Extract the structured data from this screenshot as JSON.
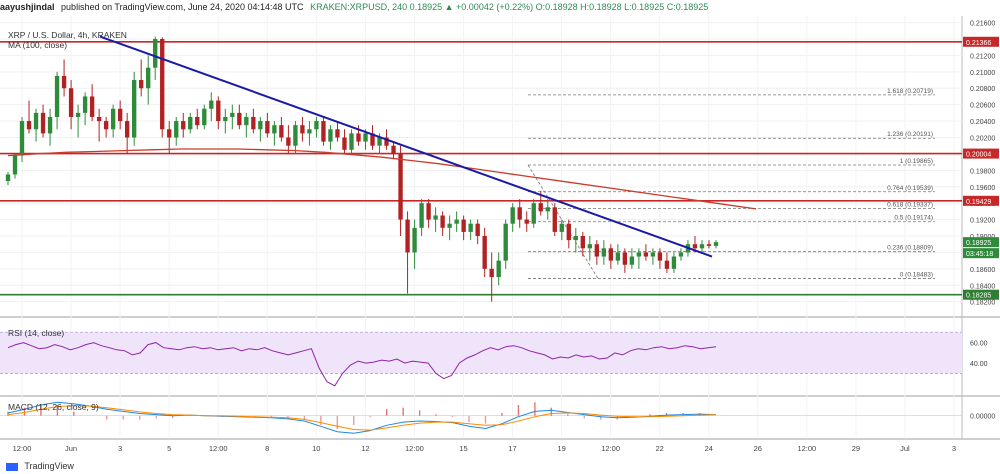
{
  "header": {
    "author": "aayushjindal",
    "published": "published on TradingView.com, June 24, 2020 04:14:48 UTC",
    "ohlc": "KRAKEN:XRPUSD, 240  0.18925 ▲ +0.00042 (+0.22%)  O:0.18928  H:0.18928  L:0.18925  C:0.18925"
  },
  "chart_title": "XRP / U.S. Dollar, 4h, KRAKEN",
  "ma_label": "MA (100, close)",
  "rsi_label": "RSI (14, close)",
  "macd_label": "MACD (12, 26, close, 9)",
  "footer_brand": "TradingView",
  "colors": {
    "up": "#2e8b3a",
    "down": "#b22222",
    "trendline": "#1a1aa6",
    "ma": "#cc3b2b",
    "rsi": "#8e24aa",
    "hline": "#c62828",
    "support": "#2e7d32",
    "fib": "#777777"
  },
  "chart_data": [
    {
      "type": "candlestick",
      "title": "XRP / U.S. Dollar, 4h, KRAKEN",
      "ylim": [
        0.1805,
        0.2168
      ],
      "y_ticks": [
        "0.21600",
        "0.21400",
        "0.21200",
        "0.21000",
        "0.20800",
        "0.20600",
        "0.20400",
        "0.20200",
        "0.20000",
        "0.19800",
        "0.19600",
        "0.19400",
        "0.19200",
        "0.19000",
        "0.18800",
        "0.18600",
        "0.18400",
        "0.18200"
      ],
      "x_ticks": [
        "12:00",
        "Jun",
        "3",
        "5",
        "12:00",
        "8",
        "10",
        "12",
        "12:00",
        "15",
        "17",
        "19",
        "12:00",
        "22",
        "24",
        "26",
        "12:00",
        "29",
        "Jul",
        "3"
      ],
      "last_price": "0.18925",
      "countdown": "03:45:18",
      "horizontal_levels": [
        {
          "label": "0.21366",
          "value": 0.21366
        },
        {
          "label": "0.20004",
          "value": 0.20004
        },
        {
          "label": "0.19429",
          "value": 0.19429
        },
        {
          "label": "0.18285",
          "value": 0.18285
        }
      ],
      "fibonacci": [
        {
          "label": "1.618 (0.20719)",
          "value": 0.20719
        },
        {
          "label": "1.236 (0.20191)",
          "value": 0.20191
        },
        {
          "label": "1 (0.19865)",
          "value": 0.19865
        },
        {
          "label": "0.764 (0.19539)",
          "value": 0.19539
        },
        {
          "label": "0.618 (0.19337)",
          "value": 0.19337
        },
        {
          "label": "0.5 (0.19174)",
          "value": 0.19174
        },
        {
          "label": "0.236 (0.18809)",
          "value": 0.18809
        },
        {
          "label": "0 (0.18483)",
          "value": 0.18483
        }
      ],
      "trendline": [
        [
          0.2143,
          0.0
        ],
        [
          0.1875,
          1.0
        ]
      ],
      "candles": [
        [
          0.1967,
          0.1978,
          0.1962,
          0.1975
        ],
        [
          0.1975,
          0.2,
          0.197,
          0.1998
        ],
        [
          0.1998,
          0.2045,
          0.199,
          0.204
        ],
        [
          0.204,
          0.2065,
          0.2025,
          0.203
        ],
        [
          0.203,
          0.2055,
          0.2015,
          0.205
        ],
        [
          0.205,
          0.206,
          0.202,
          0.2025
        ],
        [
          0.2025,
          0.2055,
          0.201,
          0.2045
        ],
        [
          0.2045,
          0.21,
          0.203,
          0.2095
        ],
        [
          0.2095,
          0.2115,
          0.207,
          0.208
        ],
        [
          0.208,
          0.209,
          0.203,
          0.2045
        ],
        [
          0.2045,
          0.206,
          0.202,
          0.205
        ],
        [
          0.205,
          0.2075,
          0.2035,
          0.207
        ],
        [
          0.207,
          0.2085,
          0.204,
          0.2045
        ],
        [
          0.2045,
          0.2055,
          0.2015,
          0.204
        ],
        [
          0.204,
          0.2045,
          0.202,
          0.203
        ],
        [
          0.203,
          0.206,
          0.202,
          0.2055
        ],
        [
          0.2055,
          0.2065,
          0.203,
          0.204
        ],
        [
          0.204,
          0.205,
          0.2,
          0.202
        ],
        [
          0.202,
          0.21,
          0.201,
          0.209
        ],
        [
          0.209,
          0.2115,
          0.207,
          0.208
        ],
        [
          0.208,
          0.212,
          0.206,
          0.2105
        ],
        [
          0.2105,
          0.2143,
          0.209,
          0.214
        ],
        [
          0.214,
          0.2142,
          0.202,
          0.203
        ],
        [
          0.203,
          0.204,
          0.2,
          0.202
        ],
        [
          0.202,
          0.2045,
          0.201,
          0.204
        ],
        [
          0.204,
          0.205,
          0.202,
          0.203
        ],
        [
          0.203,
          0.205,
          0.2025,
          0.2045
        ],
        [
          0.2045,
          0.2055,
          0.203,
          0.2035
        ],
        [
          0.2035,
          0.206,
          0.203,
          0.2055
        ],
        [
          0.2055,
          0.2075,
          0.204,
          0.2065
        ],
        [
          0.2065,
          0.207,
          0.203,
          0.204
        ],
        [
          0.204,
          0.2055,
          0.2025,
          0.2045
        ],
        [
          0.2045,
          0.206,
          0.203,
          0.205
        ],
        [
          0.205,
          0.206,
          0.203,
          0.2035
        ],
        [
          0.2035,
          0.205,
          0.202,
          0.2045
        ],
        [
          0.2045,
          0.2055,
          0.2025,
          0.203
        ],
        [
          0.203,
          0.2045,
          0.2015,
          0.204
        ],
        [
          0.204,
          0.205,
          0.202,
          0.2025
        ],
        [
          0.2025,
          0.204,
          0.201,
          0.2035
        ],
        [
          0.2035,
          0.2045,
          0.2015,
          0.202
        ],
        [
          0.202,
          0.2035,
          0.2,
          0.201
        ],
        [
          0.201,
          0.204,
          0.2,
          0.2035
        ],
        [
          0.2035,
          0.2045,
          0.2015,
          0.2025
        ],
        [
          0.2025,
          0.204,
          0.201,
          0.203
        ],
        [
          0.203,
          0.2045,
          0.202,
          0.204
        ],
        [
          0.204,
          0.2045,
          0.201,
          0.2015
        ],
        [
          0.2015,
          0.2035,
          0.2005,
          0.203
        ],
        [
          0.203,
          0.204,
          0.2015,
          0.202
        ],
        [
          0.202,
          0.203,
          0.2,
          0.2005
        ],
        [
          0.2005,
          0.203,
          0.2,
          0.2025
        ],
        [
          0.2025,
          0.2035,
          0.201,
          0.2015
        ],
        [
          0.2015,
          0.203,
          0.2005,
          0.2025
        ],
        [
          0.2025,
          0.2035,
          0.2005,
          0.201
        ],
        [
          0.201,
          0.2025,
          0.2,
          0.202
        ],
        [
          0.202,
          0.203,
          0.2005,
          0.201
        ],
        [
          0.201,
          0.2015,
          0.1995,
          0.2
        ],
        [
          0.2,
          0.201,
          0.19,
          0.192
        ],
        [
          0.192,
          0.193,
          0.183,
          0.188
        ],
        [
          0.188,
          0.192,
          0.186,
          0.191
        ],
        [
          0.191,
          0.1945,
          0.19,
          0.194
        ],
        [
          0.194,
          0.1945,
          0.191,
          0.192
        ],
        [
          0.192,
          0.1935,
          0.1905,
          0.1925
        ],
        [
          0.1925,
          0.193,
          0.19,
          0.191
        ],
        [
          0.191,
          0.1925,
          0.1895,
          0.1915
        ],
        [
          0.1915,
          0.193,
          0.1905,
          0.192
        ],
        [
          0.192,
          0.1925,
          0.1895,
          0.1905
        ],
        [
          0.1905,
          0.192,
          0.1895,
          0.1915
        ],
        [
          0.1915,
          0.192,
          0.189,
          0.19
        ],
        [
          0.19,
          0.191,
          0.185,
          0.186
        ],
        [
          0.186,
          0.188,
          0.182,
          0.185
        ],
        [
          0.185,
          0.188,
          0.184,
          0.187
        ],
        [
          0.187,
          0.192,
          0.186,
          0.1915
        ],
        [
          0.1915,
          0.194,
          0.1905,
          0.1935
        ],
        [
          0.1935,
          0.1945,
          0.191,
          0.192
        ],
        [
          0.192,
          0.193,
          0.1905,
          0.1915
        ],
        [
          0.1915,
          0.1945,
          0.191,
          0.194
        ],
        [
          0.194,
          0.1955,
          0.1925,
          0.193
        ],
        [
          0.193,
          0.1945,
          0.192,
          0.1935
        ],
        [
          0.1935,
          0.194,
          0.19,
          0.1905
        ],
        [
          0.1905,
          0.192,
          0.1895,
          0.1915
        ],
        [
          0.1915,
          0.192,
          0.1885,
          0.1895
        ],
        [
          0.1895,
          0.191,
          0.188,
          0.19
        ],
        [
          0.19,
          0.1905,
          0.1875,
          0.1885
        ],
        [
          0.1885,
          0.19,
          0.187,
          0.189
        ],
        [
          0.189,
          0.1895,
          0.1865,
          0.1875
        ],
        [
          0.1875,
          0.1895,
          0.1865,
          0.1885
        ],
        [
          0.1885,
          0.189,
          0.186,
          0.187
        ],
        [
          0.187,
          0.189,
          0.1865,
          0.188
        ],
        [
          0.188,
          0.1885,
          0.1855,
          0.1865
        ],
        [
          0.1865,
          0.1885,
          0.186,
          0.1875
        ],
        [
          0.1875,
          0.1885,
          0.186,
          0.188
        ],
        [
          0.188,
          0.189,
          0.187,
          0.1875
        ],
        [
          0.1875,
          0.1885,
          0.1865,
          0.188
        ],
        [
          0.188,
          0.1885,
          0.186,
          0.187
        ],
        [
          0.187,
          0.188,
          0.1855,
          0.186
        ],
        [
          0.186,
          0.188,
          0.1855,
          0.1875
        ],
        [
          0.1875,
          0.1885,
          0.187,
          0.188
        ],
        [
          0.188,
          0.1895,
          0.1875,
          0.189
        ],
        [
          0.189,
          0.19,
          0.188,
          0.1885
        ],
        [
          0.1885,
          0.1895,
          0.188,
          0.189
        ],
        [
          0.189,
          0.1895,
          0.1885,
          0.1888
        ],
        [
          0.1888,
          0.1895,
          0.1885,
          0.18925
        ]
      ],
      "ma_100": [
        0.1998,
        0.2,
        0.2002,
        0.2003,
        0.2004,
        0.2005,
        0.2006,
        0.2006,
        0.2006,
        0.2005,
        0.2004,
        0.2002,
        0.1999,
        0.1996,
        0.1992,
        0.1988,
        0.1983,
        0.1978,
        0.1973,
        0.1968,
        0.1963,
        0.1958,
        0.1953,
        0.1948,
        0.1943,
        0.1938,
        0.1933
      ]
    },
    {
      "type": "line",
      "title": "RSI (14, close)",
      "ylim": [
        10,
        80
      ],
      "y_ticks": [
        "60.00",
        "40.00"
      ],
      "band": [
        30,
        70
      ],
      "values": [
        55,
        58,
        60,
        57,
        54,
        55,
        58,
        56,
        53,
        55,
        58,
        60,
        57,
        55,
        53,
        52,
        48,
        50,
        58,
        60,
        55,
        54,
        53,
        55,
        56,
        54,
        55,
        53,
        54,
        55,
        52,
        54,
        53,
        55,
        52,
        50,
        48,
        50,
        52,
        54,
        35,
        22,
        18,
        30,
        38,
        42,
        40,
        41,
        43,
        42,
        44,
        40,
        42,
        41,
        40,
        30,
        25,
        28,
        40,
        45,
        48,
        52,
        55,
        53,
        56,
        57,
        55,
        52,
        50,
        48,
        44,
        46,
        45,
        48,
        46,
        47,
        44,
        45,
        50,
        48,
        52,
        54,
        53,
        55,
        56,
        54,
        55,
        57,
        56,
        54,
        55,
        56
      ]
    },
    {
      "type": "line",
      "title": "MACD (12, 26, close, 9)",
      "ylim": [
        -0.004,
        0.0035
      ],
      "y_ticks": [
        "0.00000"
      ],
      "macd": [
        0.0005,
        0.0012,
        0.002,
        0.0025,
        0.0022,
        0.0018,
        0.0012,
        0.0008,
        0.0004,
        0.0002,
        0.0,
        0.0001,
        0.0,
        -0.0001,
        -0.0002,
        -0.0003,
        -0.0004,
        -0.0006,
        -0.001,
        -0.002,
        -0.003,
        -0.0033,
        -0.0028,
        -0.0018,
        -0.0012,
        -0.001,
        -0.0011,
        -0.0013,
        -0.002,
        -0.0024,
        -0.0015,
        -0.0002,
        0.0008,
        0.001,
        0.0006,
        0.0002,
        -0.0002,
        -0.0004,
        -0.0003,
        -0.0001,
        0.0001,
        0.0002,
        0.0003,
        0.0002
      ],
      "signal": [
        0.0002,
        0.0006,
        0.0012,
        0.0017,
        0.0019,
        0.0018,
        0.0015,
        0.0011,
        0.0007,
        0.0004,
        0.0002,
        0.0001,
        0.0,
        0.0,
        -0.0001,
        -0.0002,
        -0.0003,
        -0.0004,
        -0.0007,
        -0.0013,
        -0.002,
        -0.0026,
        -0.0027,
        -0.0023,
        -0.0018,
        -0.0014,
        -0.0012,
        -0.0012,
        -0.0015,
        -0.0018,
        -0.0017,
        -0.001,
        -0.0002,
        0.0004,
        0.0005,
        0.0004,
        0.0001,
        -0.0001,
        -0.0002,
        -0.0002,
        -0.0001,
        0.0,
        0.0001,
        0.0002
      ]
    }
  ]
}
